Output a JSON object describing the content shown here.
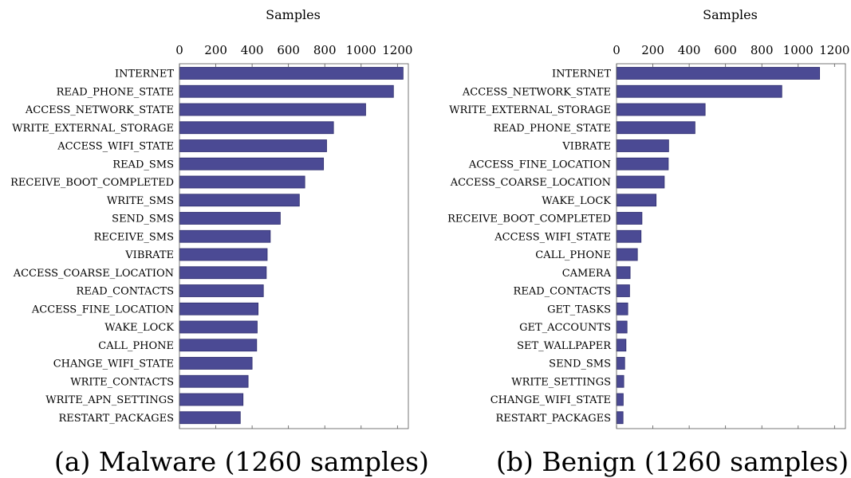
{
  "colors": {
    "bar": "#4b4a94",
    "bar_edge": "#2f2e6e",
    "frame": "#555555"
  },
  "chart_data": [
    {
      "type": "bar",
      "orientation": "horizontal",
      "title": "(a) Malware (1260 samples)",
      "xlabel": "Samples",
      "xlim": [
        0,
        1260
      ],
      "xticks": [
        0,
        200,
        400,
        600,
        800,
        1000,
        1200
      ],
      "categories": [
        "INTERNET",
        "READ_PHONE_STATE",
        "ACCESS_NETWORK_STATE",
        "WRITE_EXTERNAL_STORAGE",
        "ACCESS_WIFI_STATE",
        "READ_SMS",
        "RECEIVE_BOOT_COMPLETED",
        "WRITE_SMS",
        "SEND_SMS",
        "RECEIVE_SMS",
        "VIBRATE",
        "ACCESS_COARSE_LOCATION",
        "READ_CONTACTS",
        "ACCESS_FINE_LOCATION",
        "WAKE_LOCK",
        "CALL_PHONE",
        "CHANGE_WIFI_STATE",
        "WRITE_CONTACTS",
        "WRITE_APN_SETTINGS",
        "RESTART_PACKAGES"
      ],
      "values": [
        1231,
        1178,
        1025,
        848,
        810,
        793,
        690,
        660,
        555,
        500,
        483,
        478,
        462,
        433,
        428,
        425,
        400,
        378,
        350,
        335
      ]
    },
    {
      "type": "bar",
      "orientation": "horizontal",
      "title": "(b) Benign (1260 samples)",
      "xlabel": "Samples",
      "xlim": [
        0,
        1260
      ],
      "xticks": [
        0,
        200,
        400,
        600,
        800,
        1000,
        1200
      ],
      "categories": [
        "INTERNET",
        "ACCESS_NETWORK_STATE",
        "WRITE_EXTERNAL_STORAGE",
        "READ_PHONE_STATE",
        "VIBRATE",
        "ACCESS_FINE_LOCATION",
        "ACCESS_COARSE_LOCATION",
        "WAKE_LOCK",
        "RECEIVE_BOOT_COMPLETED",
        "ACCESS_WIFI_STATE",
        "CALL_PHONE",
        "CAMERA",
        "READ_CONTACTS",
        "GET_TASKS",
        "GET_ACCOUNTS",
        "SET_WALLPAPER",
        "SEND_SMS",
        "WRITE_SETTINGS",
        "CHANGE_WIFI_STATE",
        "RESTART_PACKAGES"
      ],
      "values": [
        1118,
        910,
        488,
        432,
        287,
        285,
        263,
        218,
        140,
        135,
        115,
        75,
        72,
        62,
        58,
        52,
        45,
        40,
        37,
        36
      ]
    }
  ]
}
